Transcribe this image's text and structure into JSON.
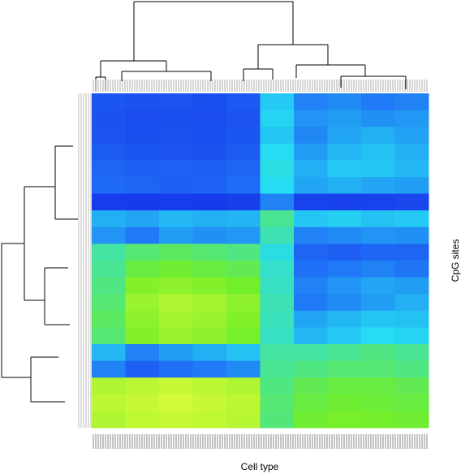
{
  "chart_data": {
    "type": "heatmap",
    "x_label": "Cell type",
    "y_label": "CpG sites",
    "colorscale": [
      "#1530e8",
      "#1f6cf6",
      "#25dcf2",
      "#72ee2a",
      "#ffff3c"
    ],
    "zlim": [
      0,
      1
    ],
    "values": [
      [
        0.16,
        0.14,
        0.15,
        0.13,
        0.17,
        0.46,
        0.3,
        0.32,
        0.28,
        0.3
      ],
      [
        0.14,
        0.12,
        0.13,
        0.12,
        0.15,
        0.48,
        0.34,
        0.36,
        0.33,
        0.35
      ],
      [
        0.15,
        0.13,
        0.14,
        0.13,
        0.16,
        0.45,
        0.31,
        0.38,
        0.4,
        0.37
      ],
      [
        0.18,
        0.16,
        0.15,
        0.14,
        0.18,
        0.5,
        0.36,
        0.42,
        0.44,
        0.4
      ],
      [
        0.22,
        0.2,
        0.21,
        0.19,
        0.22,
        0.52,
        0.4,
        0.46,
        0.45,
        0.42
      ],
      [
        0.24,
        0.22,
        0.2,
        0.21,
        0.25,
        0.5,
        0.38,
        0.4,
        0.38,
        0.36
      ],
      [
        0.05,
        0.04,
        0.05,
        0.04,
        0.06,
        0.3,
        0.08,
        0.07,
        0.08,
        0.09
      ],
      [
        0.4,
        0.38,
        0.42,
        0.4,
        0.41,
        0.62,
        0.45,
        0.47,
        0.44,
        0.46
      ],
      [
        0.34,
        0.28,
        0.36,
        0.33,
        0.35,
        0.58,
        0.3,
        0.32,
        0.34,
        0.33
      ],
      [
        0.6,
        0.66,
        0.68,
        0.66,
        0.64,
        0.52,
        0.22,
        0.2,
        0.23,
        0.22
      ],
      [
        0.62,
        0.72,
        0.74,
        0.72,
        0.7,
        0.55,
        0.26,
        0.28,
        0.3,
        0.27
      ],
      [
        0.64,
        0.78,
        0.8,
        0.78,
        0.75,
        0.56,
        0.3,
        0.34,
        0.38,
        0.36
      ],
      [
        0.66,
        0.82,
        0.86,
        0.84,
        0.8,
        0.58,
        0.28,
        0.32,
        0.36,
        0.4
      ],
      [
        0.68,
        0.8,
        0.84,
        0.82,
        0.78,
        0.57,
        0.38,
        0.42,
        0.45,
        0.44
      ],
      [
        0.66,
        0.78,
        0.82,
        0.8,
        0.76,
        0.56,
        0.42,
        0.46,
        0.5,
        0.48
      ],
      [
        0.42,
        0.3,
        0.36,
        0.4,
        0.44,
        0.6,
        0.6,
        0.62,
        0.64,
        0.62
      ],
      [
        0.3,
        0.2,
        0.26,
        0.28,
        0.32,
        0.62,
        0.64,
        0.66,
        0.66,
        0.64
      ],
      [
        0.86,
        0.88,
        0.9,
        0.88,
        0.86,
        0.64,
        0.7,
        0.72,
        0.72,
        0.7
      ],
      [
        0.88,
        0.9,
        0.92,
        0.9,
        0.88,
        0.66,
        0.72,
        0.74,
        0.73,
        0.72
      ],
      [
        0.86,
        0.89,
        0.9,
        0.89,
        0.87,
        0.65,
        0.74,
        0.76,
        0.75,
        0.74
      ]
    ]
  }
}
